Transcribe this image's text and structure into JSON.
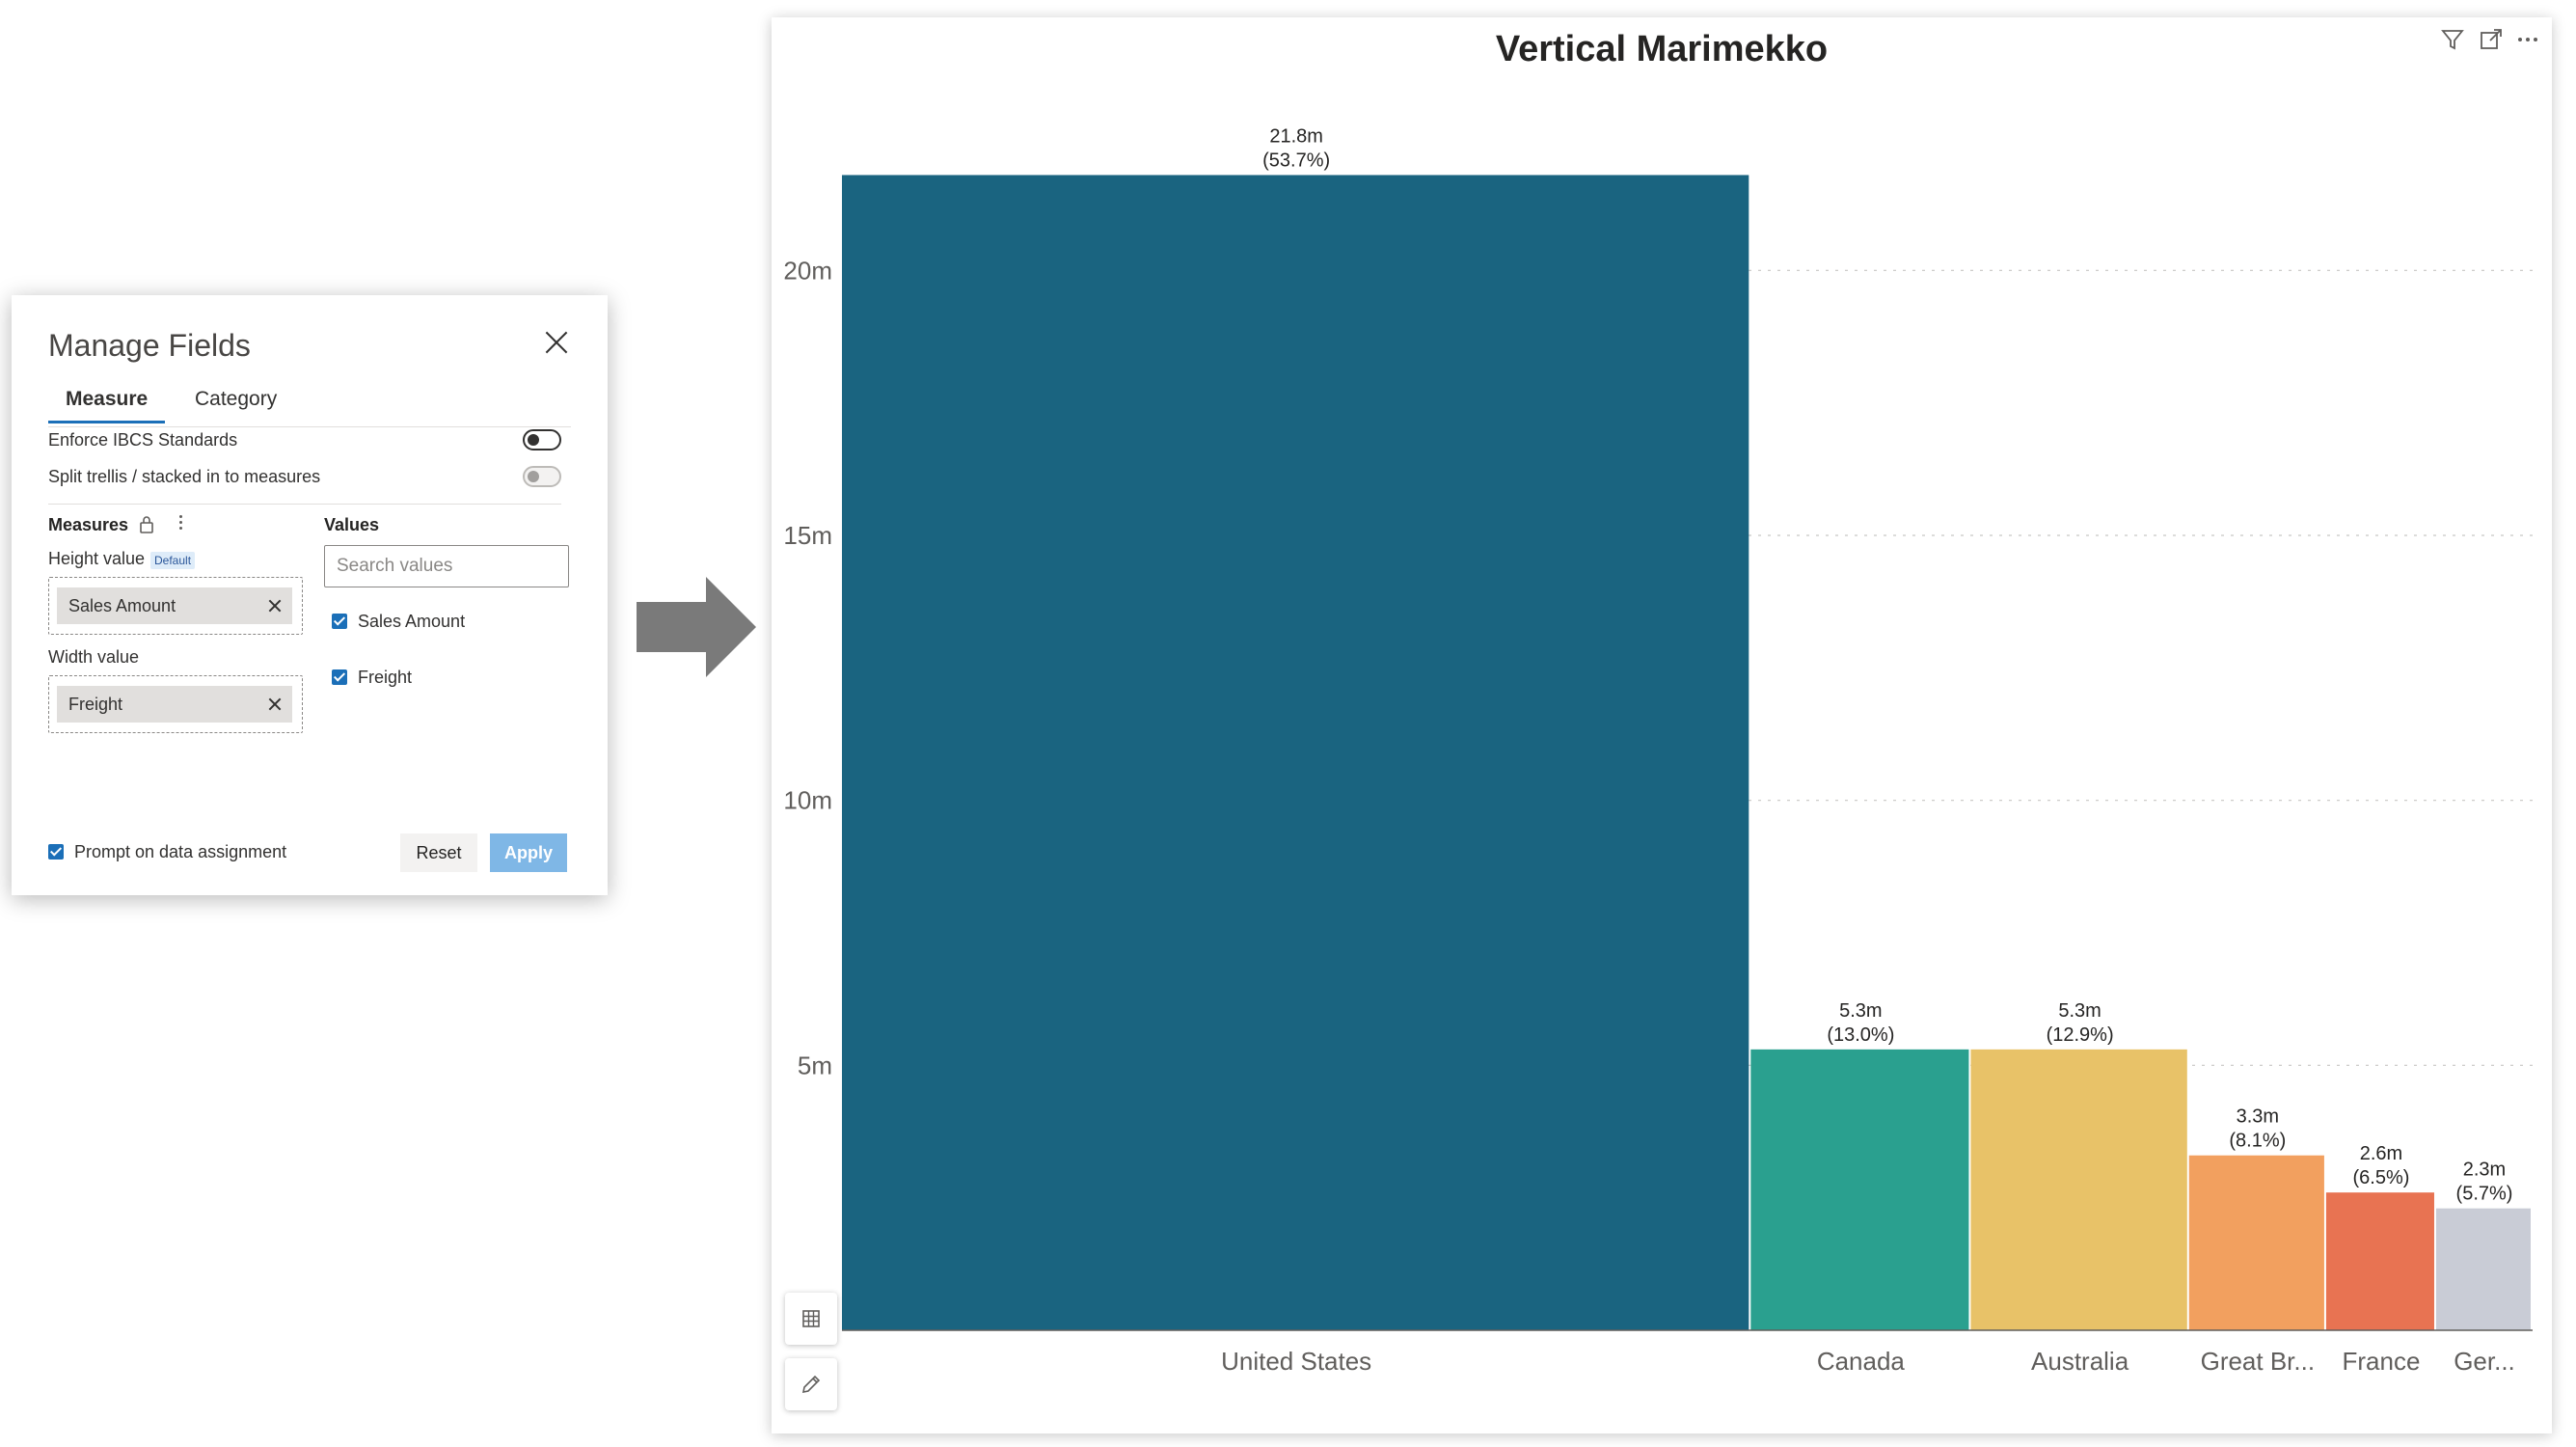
{
  "manage_fields": {
    "title": "Manage Fields",
    "tabs": [
      "Measure",
      "Category"
    ],
    "active_tab": "Measure",
    "settings": [
      {
        "label": "Enforce IBCS Standards",
        "toggle": "off"
      },
      {
        "label": "Split trellis / stacked in to measures",
        "toggle": "disabled"
      }
    ],
    "measures": {
      "title": "Measures",
      "height_label": "Height value",
      "default_badge": "Default",
      "height_field": "Sales Amount",
      "width_label": "Width value",
      "width_field": "Freight"
    },
    "values": {
      "title": "Values",
      "search_placeholder": "Search values",
      "items": [
        {
          "label": "Sales Amount",
          "checked": true
        },
        {
          "label": "Freight",
          "checked": true
        }
      ]
    },
    "prompt_label": "Prompt on data assignment",
    "prompt_checked": true,
    "reset_label": "Reset",
    "apply_label": "Apply"
  },
  "visual": {
    "title": "Vertical Marimekko",
    "header_icons": [
      "filter-icon",
      "focus-mode-icon",
      "more-options-icon"
    ],
    "side_buttons": [
      "table-icon",
      "pencil-icon"
    ]
  },
  "chart_data": {
    "type": "bar",
    "subtype": "marimekko",
    "title": "Vertical Marimekko",
    "xlabel": "",
    "ylabel": "",
    "ylim": [
      0,
      22.5
    ],
    "y_ticks": [
      5,
      10,
      15,
      20
    ],
    "y_tick_labels": [
      "5m",
      "10m",
      "15m",
      "20m"
    ],
    "grid": true,
    "categories": [
      "United States",
      "Canada",
      "Australia",
      "Great Br...",
      "France",
      "Ger..."
    ],
    "values": [
      21.8,
      5.3,
      5.3,
      3.3,
      2.6,
      2.3
    ],
    "value_labels": [
      "21.8m",
      "5.3m",
      "5.3m",
      "3.3m",
      "2.6m",
      "2.3m"
    ],
    "percent_labels": [
      "(53.7%)",
      "(13.0%)",
      "(12.9%)",
      "(8.1%)",
      "(6.5%)",
      "(5.7%)"
    ],
    "widths": [
      53.7,
      13.0,
      12.9,
      8.1,
      6.5,
      5.7
    ],
    "colors": [
      "#1a6480",
      "#2aa08f",
      "#e8c268",
      "#f2a05f",
      "#e87352",
      "#c9ccd6"
    ]
  }
}
